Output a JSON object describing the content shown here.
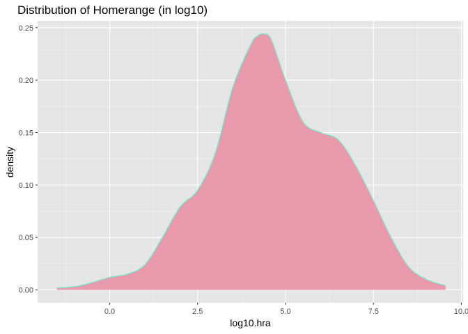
{
  "chart_data": {
    "type": "area",
    "title": "Distribution of Homerange (in log10)",
    "xlabel": "log10.hra",
    "ylabel": "density",
    "xlim": [
      -2.05,
      10.05
    ],
    "ylim": [
      -0.0122,
      0.2565
    ],
    "x_ticks": [
      0.0,
      2.5,
      5.0,
      7.5,
      10.0
    ],
    "x_tick_labels": [
      "0.0",
      "2.5",
      "5.0",
      "7.5",
      "10.0"
    ],
    "y_ticks": [
      0.0,
      0.05,
      0.1,
      0.15,
      0.2,
      0.25
    ],
    "y_tick_labels": [
      "0.00",
      "0.05",
      "0.10",
      "0.15",
      "0.20",
      "0.25"
    ],
    "grid": true,
    "colors": {
      "panel_background": "#e5e5e5",
      "grid_line": "#ffffff",
      "area_fill": "#e899ab",
      "area_outline": "#7fe3c5"
    },
    "series": [
      {
        "x": [
          -1.5,
          -1.0,
          -0.5,
          0.0,
          0.5,
          1.0,
          1.5,
          2.0,
          2.5,
          3.0,
          3.5,
          4.0,
          4.2,
          4.4,
          4.6,
          5.0,
          5.5,
          6.0,
          6.5,
          7.0,
          7.5,
          8.0,
          8.5,
          9.0,
          9.55
        ],
        "y": [
          0.002,
          0.003,
          0.007,
          0.012,
          0.015,
          0.024,
          0.05,
          0.079,
          0.095,
          0.13,
          0.193,
          0.233,
          0.242,
          0.244,
          0.238,
          0.2,
          0.16,
          0.15,
          0.143,
          0.118,
          0.085,
          0.05,
          0.022,
          0.01,
          0.004
        ]
      }
    ]
  }
}
